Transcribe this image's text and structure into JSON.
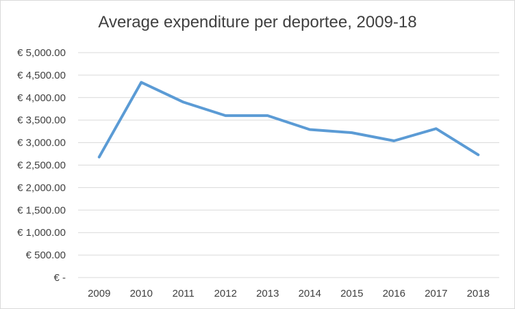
{
  "chart_data": {
    "type": "line",
    "title": "Average expenditure per deportee, 2009-18",
    "xlabel": "",
    "ylabel": "",
    "categories": [
      "2009",
      "2010",
      "2011",
      "2012",
      "2013",
      "2014",
      "2015",
      "2016",
      "2017",
      "2018"
    ],
    "series": [
      {
        "values": [
          2680,
          4340,
          3900,
          3600,
          3600,
          3290,
          3220,
          3040,
          3310,
          2730
        ]
      }
    ],
    "ylim": [
      0,
      5000
    ],
    "yticks": [
      0,
      500,
      1000,
      1500,
      2000,
      2500,
      3000,
      3500,
      4000,
      4500,
      5000
    ],
    "ytick_labels": [
      "€ -",
      "€ 500.00",
      "€ 1,000.00",
      "€ 1,500.00",
      "€ 2,000.00",
      "€ 2,500.00",
      "€ 3,000.00",
      "€ 3,500.00",
      "€ 4,000.00",
      "€ 4,500.00",
      "€ 5,000.00"
    ],
    "grid": true,
    "legend": "none",
    "colors": {
      "line": "#5b9bd5",
      "grid": "#d9d9d9",
      "text": "#404040"
    }
  }
}
